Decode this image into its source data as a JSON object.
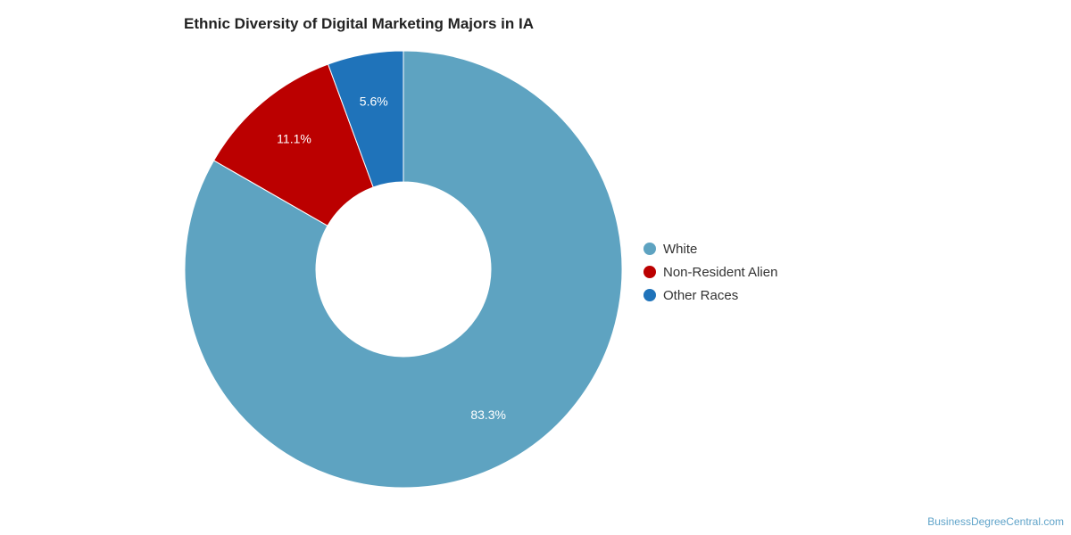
{
  "chart_data": {
    "type": "pie",
    "title": "Ethnic Diversity of Digital Marketing Majors in IA",
    "donut": true,
    "slices": [
      {
        "label": "White",
        "value": 83.3,
        "display": "83.3%",
        "color": "#5ea3c1"
      },
      {
        "label": "Non-Resident Alien",
        "value": 11.1,
        "display": "11.1%",
        "color": "#bb0000"
      },
      {
        "label": "Other Races",
        "value": 5.6,
        "display": "5.6%",
        "color": "#1f73ba"
      }
    ],
    "legend_position": "right"
  },
  "footer": {
    "source": "BusinessDegreeCentral.com"
  }
}
